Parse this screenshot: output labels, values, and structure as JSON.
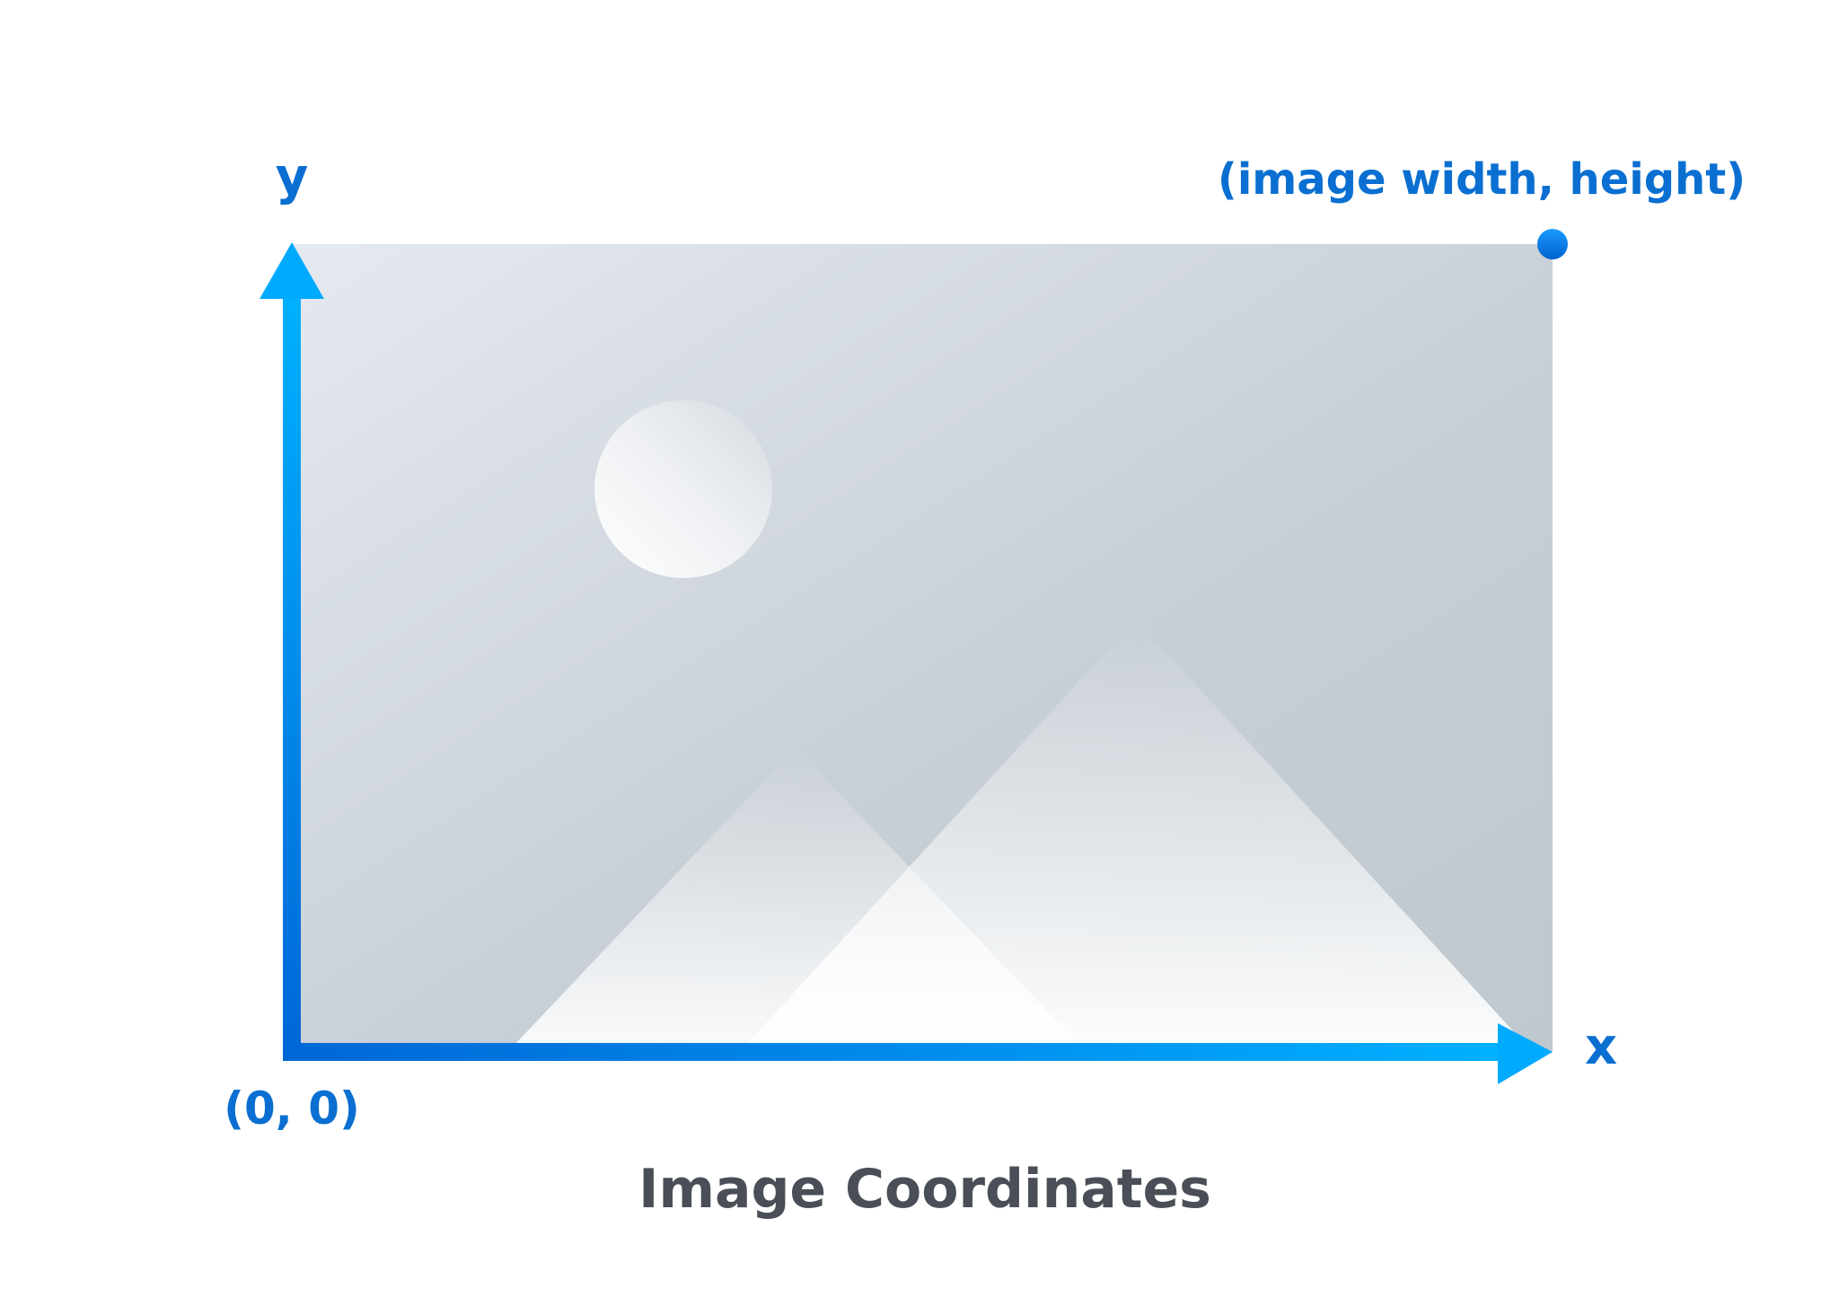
{
  "diagram": {
    "title": "Image Coordinates",
    "origin_label": "(0, 0)",
    "corner_label": "(image width, height)",
    "x_axis_label": "x",
    "y_axis_label": "y",
    "placeholder_image": {
      "icon": "image-placeholder-icon",
      "features": [
        "sun",
        "back-mountain",
        "front-mountain"
      ]
    },
    "colors": {
      "axis_start": "#0066d6",
      "axis_end": "#00b0ff",
      "label_blue": "#0a6fd1",
      "title_gray": "#4a4f57",
      "corner_dot": "#0a84ea",
      "image_light": "#e4e8ef",
      "image_dark": "#c1c9d1"
    }
  }
}
